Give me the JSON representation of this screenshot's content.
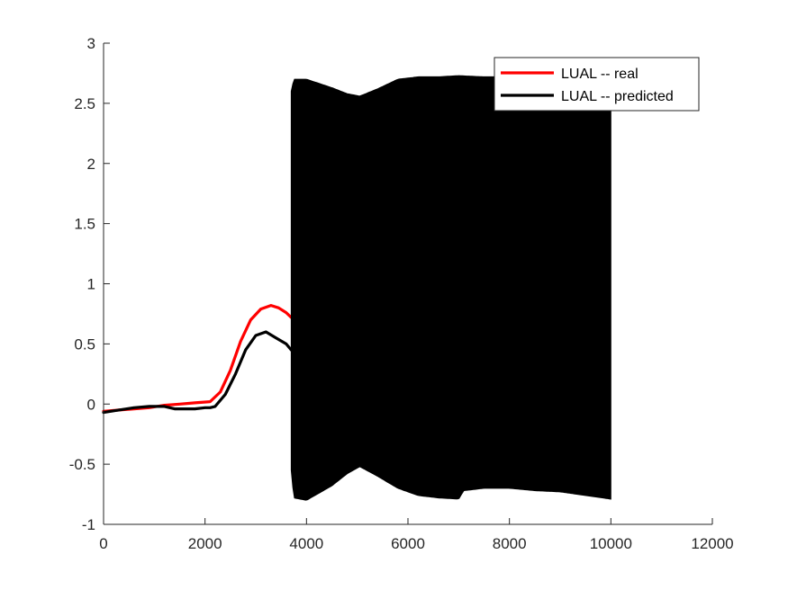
{
  "chart_data": {
    "type": "line",
    "title": "",
    "xlabel": "",
    "ylabel": "",
    "xlim": [
      0,
      12000
    ],
    "ylim": [
      -1,
      3
    ],
    "xticks": [
      0,
      2000,
      4000,
      6000,
      8000,
      10000,
      12000
    ],
    "xtick_labels": [
      "0",
      "2000",
      "4000",
      "6000",
      "8000",
      "10000",
      "12000"
    ],
    "yticks": [
      -1,
      -0.5,
      0,
      0.5,
      1,
      1.5,
      2,
      2.5,
      3
    ],
    "ytick_labels": [
      "-1",
      "-0.5",
      "0",
      "0.5",
      "1",
      "1.5",
      "2",
      "2.5",
      "3"
    ],
    "grid": false,
    "legend_position": "top-right",
    "series": [
      {
        "name": "LUAL -- real",
        "color": "#ff0000",
        "x": [
          0,
          300,
          600,
          900,
          1200,
          1500,
          1800,
          2100,
          2300,
          2500,
          2700,
          2900,
          3100,
          3300,
          3450,
          3600,
          3700
        ],
        "y": [
          -0.06,
          -0.05,
          -0.04,
          -0.03,
          -0.01,
          0.0,
          0.01,
          0.02,
          0.1,
          0.28,
          0.52,
          0.7,
          0.79,
          0.82,
          0.8,
          0.76,
          0.72
        ]
      },
      {
        "name": "LUAL -- predicted",
        "color": "#000000",
        "x": [
          0,
          300,
          600,
          900,
          1200,
          1400,
          1600,
          1800,
          2000,
          2100,
          2200,
          2400,
          2600,
          2800,
          3000,
          3200,
          3400,
          3600,
          3700
        ],
        "y": [
          -0.07,
          -0.05,
          -0.03,
          -0.02,
          -0.02,
          -0.04,
          -0.04,
          -0.04,
          -0.03,
          -0.03,
          -0.02,
          0.08,
          0.25,
          0.45,
          0.57,
          0.6,
          0.55,
          0.5,
          0.45
        ]
      }
    ],
    "oscillation": {
      "series": "LUAL -- predicted",
      "x_start": 3700,
      "x_end": 10000,
      "upper_envelope": {
        "x": [
          3700,
          3750,
          4000,
          4500,
          4800,
          5050,
          5400,
          5800,
          6200,
          6600,
          7000,
          7500,
          8000,
          8500,
          9000,
          9500,
          10000
        ],
        "y": [
          2.6,
          2.7,
          2.7,
          2.63,
          2.58,
          2.56,
          2.62,
          2.7,
          2.72,
          2.72,
          2.73,
          2.72,
          2.72,
          2.71,
          2.7,
          2.69,
          2.68
        ]
      },
      "lower_envelope": {
        "x": [
          3700,
          3750,
          4000,
          4500,
          4800,
          5050,
          5400,
          5800,
          6200,
          6600,
          7000,
          7100,
          7500,
          8000,
          8500,
          9000,
          9500,
          10000
        ],
        "y": [
          -0.55,
          -0.78,
          -0.8,
          -0.68,
          -0.58,
          -0.52,
          -0.6,
          -0.7,
          -0.76,
          -0.78,
          -0.79,
          -0.72,
          -0.7,
          -0.7,
          -0.72,
          -0.73,
          -0.76,
          -0.79
        ]
      }
    }
  },
  "legend": {
    "entries": [
      "LUAL -- real",
      "LUAL -- predicted"
    ]
  }
}
